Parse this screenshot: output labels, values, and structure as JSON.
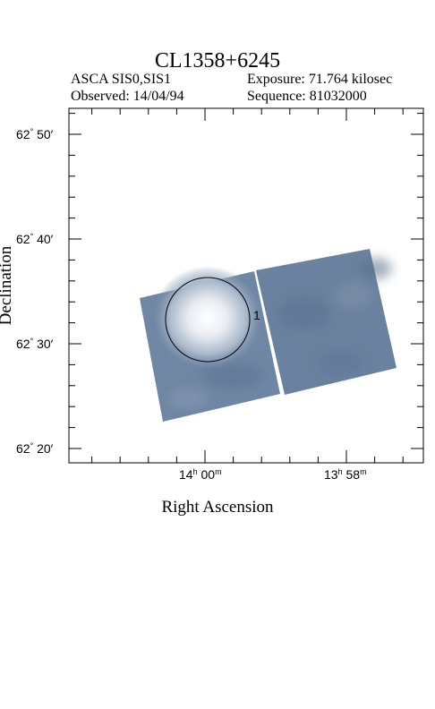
{
  "header": {
    "title": "CL1358+6245",
    "instrument": "ASCA SIS0,SIS1",
    "observed": "Observed: 14/04/94",
    "exposure": "Exposure: 71.764 kilosec",
    "sequence": "Sequence: 81032000"
  },
  "axes": {
    "xlabel": "Right Ascension",
    "ylabel": "Declination",
    "y_ticks": [
      {
        "deg": "62",
        "min": "50"
      },
      {
        "deg": "62",
        "min": "40"
      },
      {
        "deg": "62",
        "min": "30"
      },
      {
        "deg": "62",
        "min": "20"
      }
    ],
    "x_ticks": [
      {
        "h": "14",
        "m": "00"
      },
      {
        "h": "13",
        "m": "58"
      }
    ]
  },
  "image": {
    "source_region_label": "1",
    "colors": {
      "field": "#6c83a0",
      "field_dark": "#5a7190",
      "source_core": "#ffffff",
      "source_halo": "#c9d2de"
    }
  }
}
